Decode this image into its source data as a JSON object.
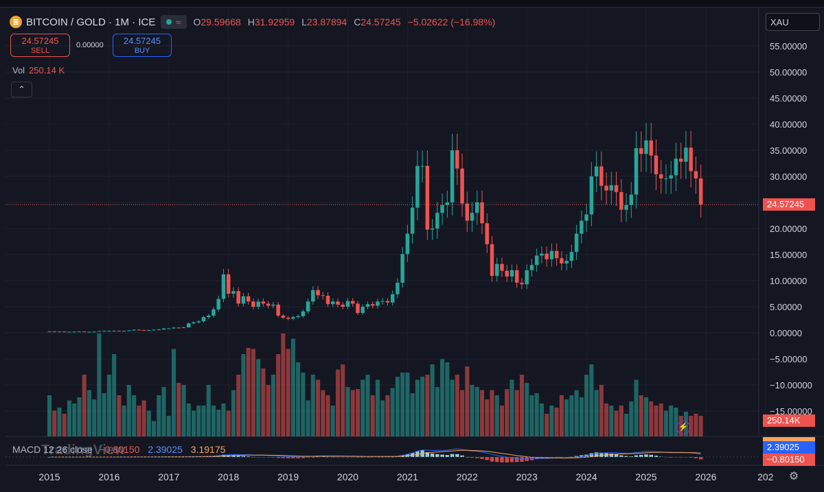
{
  "header": {
    "symbol": "BITCOIN / GOLD · 1M · ICE",
    "o_label": "O",
    "o_value": "29.59668",
    "h_label": "H",
    "h_value": "31.92959",
    "l_label": "L",
    "l_value": "23.87894",
    "c_label": "C",
    "c_value": "24.57245",
    "change": "−5.02622 (−16.98%)",
    "status_icon": "live-dot-icon",
    "wave_icon": "≈"
  },
  "trade": {
    "sell_price": "24.57245",
    "sell_label": "SELL",
    "spread": "0.00000",
    "buy_price": "24.57245",
    "buy_label": "BUY"
  },
  "volume": {
    "label": "Vol",
    "value": "250.14 K"
  },
  "collapse_icon": "⌃",
  "compare_symbol": "XAU",
  "price_badge": "24.57245",
  "volume_badge": "250.14K",
  "macd": {
    "name": "MACD 12 26 close",
    "hist": "−0.80150",
    "macd": "2.39025",
    "signal": "3.19175",
    "badge_macd": "2.39025",
    "badge_hist": "−0.80150"
  },
  "watermark": "TradingView",
  "colors": {
    "up": "#26a69a",
    "down": "#ef5350",
    "macd_line": "#2962ff",
    "signal_line": "#f7a35c",
    "background": "#141722"
  },
  "chart_data": {
    "type": "candlestick",
    "title": "BITCOIN / GOLD · 1M · ICE",
    "y_ticks": [
      "55.00000",
      "50.00000",
      "45.00000",
      "40.00000",
      "35.00000",
      "30.00000",
      "25.00000",
      "20.00000",
      "15.00000",
      "10.00000",
      "5.00000",
      "0.00000",
      "−5.00000",
      "−10.00000",
      "−15.00000"
    ],
    "x_ticks": [
      "2015",
      "2016",
      "2017",
      "2018",
      "2019",
      "2020",
      "2021",
      "2022",
      "2023",
      "2024",
      "2025",
      "2026",
      "202"
    ],
    "ylim": [
      -15,
      55
    ],
    "grid": true,
    "last_close": 24.57245,
    "monthly_close": [
      0.25,
      0.22,
      0.24,
      0.2,
      0.21,
      0.22,
      0.24,
      0.2,
      0.2,
      0.22,
      0.33,
      0.38,
      0.38,
      0.38,
      0.35,
      0.38,
      0.45,
      0.58,
      0.53,
      0.5,
      0.52,
      0.6,
      0.63,
      0.83,
      0.85,
      1.0,
      0.95,
      1.05,
      1.8,
      2.0,
      2.2,
      3.0,
      3.3,
      4.5,
      6.5,
      11.2,
      7.5,
      8.0,
      5.6,
      7.0,
      6.0,
      5.0,
      6.0,
      5.6,
      5.2,
      5.4,
      3.3,
      2.9,
      2.7,
      3.0,
      3.2,
      4.1,
      6.0,
      8.2,
      7.2,
      7.1,
      5.5,
      6.0,
      5.4,
      5.0,
      6.1,
      5.6,
      3.8,
      5.0,
      5.5,
      5.2,
      6.0,
      6.1,
      5.8,
      7.4,
      9.6,
      15.1,
      19.0,
      24.0,
      32.0,
      32.0,
      19.8,
      20.0,
      23.0,
      24.5,
      25.0,
      35.0,
      31.5,
      24.8,
      21.5,
      23.0,
      25.0,
      21.0,
      17.0,
      10.9,
      13.2,
      11.9,
      10.8,
      12.0,
      9.6,
      9.3,
      12.0,
      13.0,
      14.8,
      15.2,
      14.1,
      15.7,
      14.3,
      13.3,
      13.8,
      15.5,
      19.0,
      21.5,
      22.7,
      30.0,
      31.9,
      28.2,
      27.3,
      28.3,
      27.0,
      23.6,
      24.5,
      26.5,
      35.4,
      34.3,
      36.9,
      34.0,
      30.4,
      29.6,
      29.6,
      30.2,
      33.4,
      32.8,
      35.5,
      31.0,
      29.6,
      24.6
    ],
    "first_month": "2015-01",
    "volume_axis": {
      "ylim": [
        0,
        1
      ],
      "note": "volume overlay shares lower panel"
    },
    "volume_relative": [
      0.4,
      0.25,
      0.28,
      0.22,
      0.35,
      0.32,
      0.38,
      0.6,
      0.45,
      0.36,
      1.0,
      0.42,
      0.6,
      0.8,
      0.4,
      0.3,
      0.5,
      0.4,
      0.3,
      0.35,
      0.25,
      0.15,
      0.4,
      0.48,
      0.2,
      0.85,
      0.52,
      0.5,
      0.32,
      0.25,
      0.3,
      0.3,
      0.5,
      0.3,
      0.26,
      0.32,
      0.25,
      0.45,
      0.6,
      0.8,
      0.86,
      0.85,
      0.75,
      0.66,
      0.5,
      0.6,
      0.8,
      1.0,
      0.85,
      0.95,
      0.72,
      0.62,
      0.35,
      0.6,
      0.55,
      0.45,
      0.4,
      0.3,
      0.65,
      0.7,
      0.48,
      0.45,
      0.46,
      0.55,
      0.6,
      0.4,
      0.55,
      0.35,
      0.4,
      0.47,
      0.58,
      0.62,
      0.62,
      0.42,
      0.55,
      0.58,
      0.6,
      0.7,
      0.48,
      0.75,
      0.72,
      0.55,
      0.6,
      0.45,
      0.68,
      0.5,
      0.48,
      0.45,
      0.36,
      0.45,
      0.4,
      0.3,
      0.46,
      0.55,
      0.45,
      0.6,
      0.52,
      0.4,
      0.42,
      0.32,
      0.22,
      0.3,
      0.28,
      0.4,
      0.36,
      0.4,
      0.45,
      0.38,
      0.6,
      0.7,
      0.45,
      0.5,
      0.32,
      0.3,
      0.25,
      0.3,
      0.22,
      0.34,
      0.55,
      0.4,
      0.38,
      0.34,
      0.3,
      0.32,
      0.25,
      0.3,
      0.28,
      0.2,
      0.24,
      0.2,
      0.22,
      0.2
    ]
  }
}
